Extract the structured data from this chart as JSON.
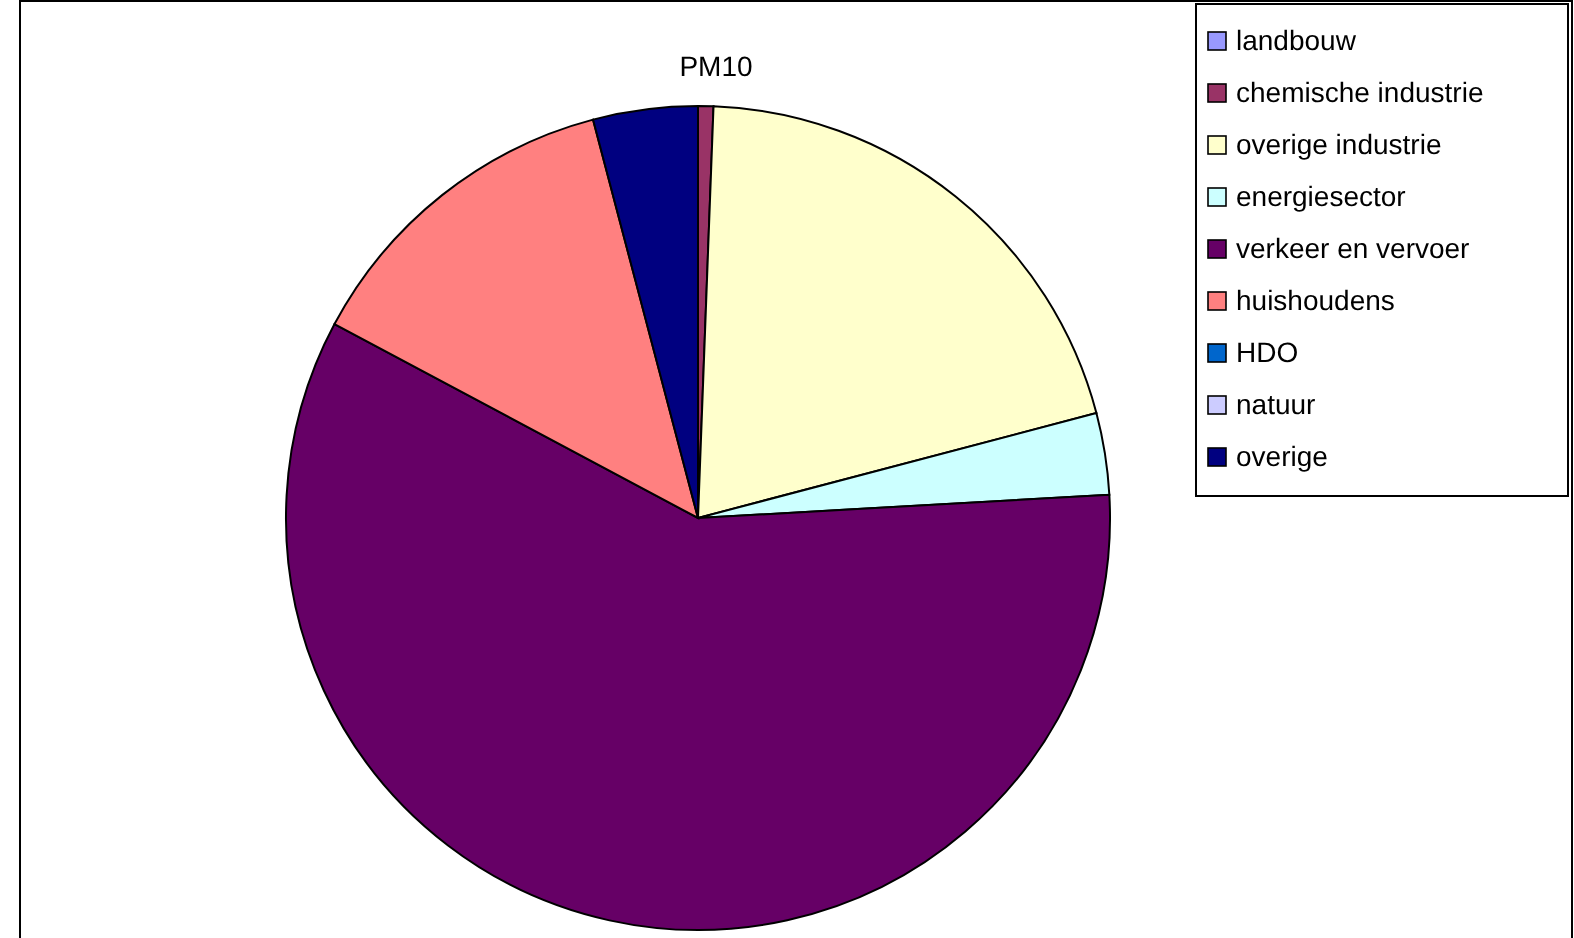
{
  "chart_data": {
    "type": "pie",
    "title": "PM10",
    "categories": [
      "landbouw",
      "chemische industrie",
      "overige industrie",
      "energiesector",
      "verkeer en vervoer",
      "huishoudens",
      "HDO",
      "natuur",
      "overige"
    ],
    "values": [
      0,
      0.6,
      20.3,
      3.2,
      58.7,
      13.1,
      0,
      0,
      4.1
    ],
    "colors": [
      "#9999ff",
      "#993366",
      "#ffffcc",
      "#ccffff",
      "#660066",
      "#ff8080",
      "#0066cc",
      "#ccccff",
      "#000080"
    ],
    "legend": "right"
  }
}
